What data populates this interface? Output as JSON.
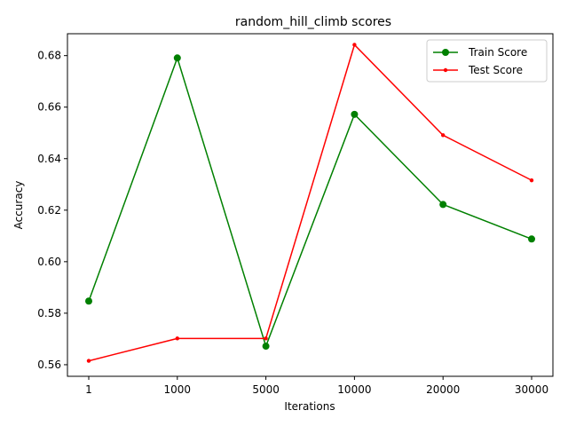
{
  "chart_data": {
    "type": "line",
    "title": "random_hill_climb scores",
    "xlabel": "Iterations",
    "ylabel": "Accuracy",
    "categories": [
      "1",
      "1000",
      "5000",
      "10000",
      "20000",
      "30000"
    ],
    "yticks": [
      "0.56",
      "0.58",
      "0.60",
      "0.62",
      "0.64",
      "0.66",
      "0.68"
    ],
    "ylim": [
      0.5555,
      0.6885
    ],
    "grid": false,
    "legend_position": "top-right",
    "series": [
      {
        "name": "Train Score",
        "color": "#008000",
        "marker": "circle",
        "values": [
          0.5847,
          0.6791,
          0.5672,
          0.6572,
          0.6222,
          0.6088
        ]
      },
      {
        "name": "Test Score",
        "color": "#ff0000",
        "marker": "point",
        "values": [
          0.5615,
          0.5702,
          0.5702,
          0.6842,
          0.6491,
          0.6316
        ]
      }
    ]
  }
}
